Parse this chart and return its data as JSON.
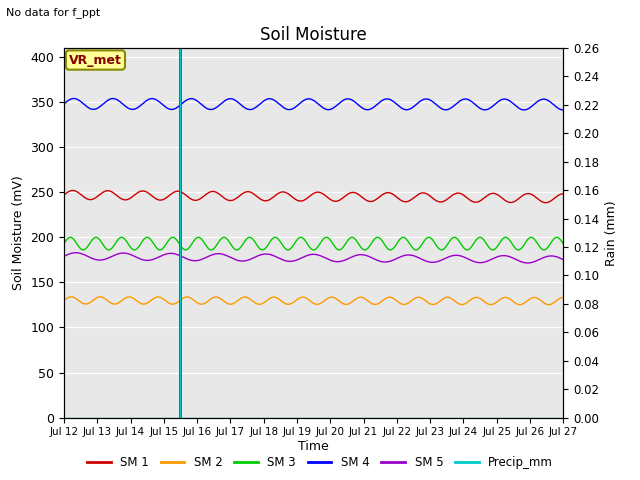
{
  "title": "Soil Moisture",
  "note": "No data for f_ppt",
  "ylabel_left": "Soil Moisture (mV)",
  "ylabel_right": "Rain (mm)",
  "xlabel": "Time",
  "ylim_left": [
    0,
    410
  ],
  "ylim_right": [
    0.0,
    0.26
  ],
  "x_tick_labels": [
    "Jul 12",
    "Jul 13",
    "Jul 14",
    "Jul 15",
    "Jul 16",
    "Jul 17",
    "Jul 18",
    "Jul 19",
    "Jul 20",
    "Jul 21",
    "Jul 22",
    "Jul 23",
    "Jul 24",
    "Jul 25",
    "Jul 26",
    "Jul 27"
  ],
  "vline_x": 3.5,
  "sm1_base": 247,
  "sm1_amp": 5,
  "sm1_freq": 1.9,
  "sm1_color": "#cc0000",
  "sm2_base": 130,
  "sm2_amp": 4,
  "sm2_freq": 2.3,
  "sm2_color": "#ff9900",
  "sm3_base": 193,
  "sm3_amp": 7,
  "sm3_freq": 2.6,
  "sm3_color": "#00cc00",
  "sm4_base": 348,
  "sm4_amp": 6,
  "sm4_freq": 1.7,
  "sm4_color": "#0000ff",
  "sm5_base": 179,
  "sm5_amp": 4,
  "sm5_freq": 1.4,
  "sm5_color": "#9900cc",
  "precip_color": "#00cccc",
  "annotation_text": "VR_met",
  "bg_color": "#e8e8e8",
  "legend_labels": [
    "SM 1",
    "SM 2",
    "SM 3",
    "SM 4",
    "SM 5",
    "Precip_mm"
  ],
  "legend_colors": [
    "#cc0000",
    "#ff9900",
    "#00cc00",
    "#0000ff",
    "#9900cc",
    "#00cccc"
  ],
  "right_ticks": [
    0.0,
    0.02,
    0.04,
    0.06,
    0.08,
    0.1,
    0.12,
    0.14,
    0.16,
    0.18,
    0.2,
    0.22,
    0.24,
    0.26
  ]
}
